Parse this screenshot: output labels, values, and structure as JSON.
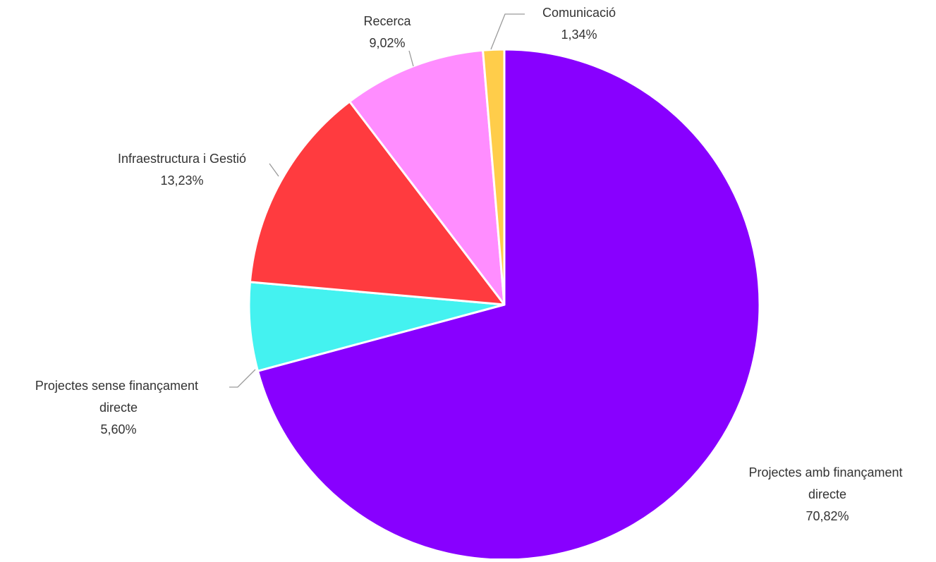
{
  "chart_data": {
    "type": "pie",
    "title": "",
    "start_angle_deg": 0,
    "direction": "clockwise",
    "slices": [
      {
        "label": "Projectes amb finançament directe",
        "value": 70.82,
        "display": "70,82%",
        "color": "#8800ff"
      },
      {
        "label": "Projectes sense finançament directe",
        "value": 5.6,
        "display": "5,60%",
        "color": "#44f2f0"
      },
      {
        "label": "Infraestructura i Gestió",
        "value": 13.23,
        "display": "13,23%",
        "color": "#ff3b3f"
      },
      {
        "label": "Recerca",
        "value": 9.02,
        "display": "9,02%",
        "color": "#ff8dff"
      },
      {
        "label": "Comunicació",
        "value": 1.34,
        "display": "1,34%",
        "color": "#ffcd4a"
      }
    ]
  }
}
